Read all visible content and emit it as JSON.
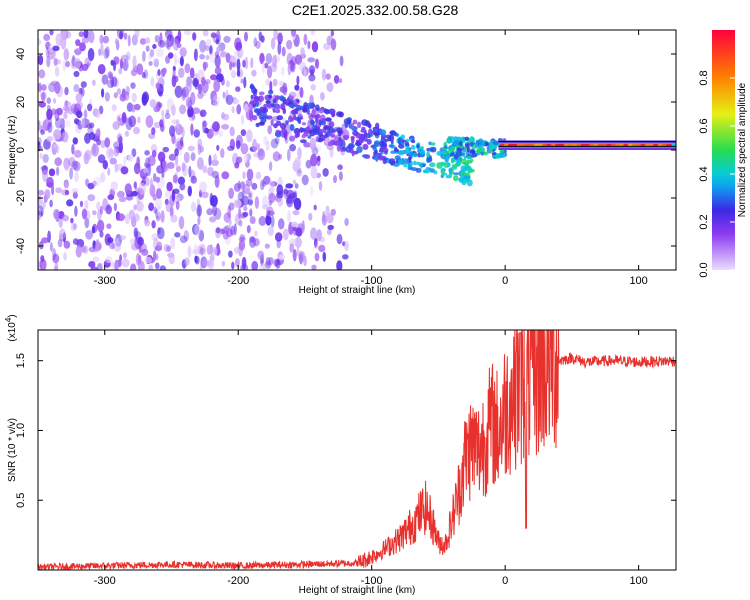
{
  "title": "C2E1.2025.332.00.58.G28",
  "colors": {
    "snr_line": "#e8302c",
    "frame": "#000000",
    "carrier_line": "#000000"
  },
  "chart_data": [
    {
      "type": "heatmap",
      "xlabel": "Height of straight line (km)",
      "ylabel": "Frequency (Hz)",
      "xlim": [
        -350,
        128
      ],
      "ylim": [
        -50,
        50
      ],
      "xticks": [
        -300,
        -200,
        -100,
        0,
        100
      ],
      "yticks": [
        -40,
        -20,
        0,
        20,
        40
      ],
      "colorbar": {
        "label": "Normalized spectral amplitude",
        "range": [
          0,
          1
        ],
        "ticks": [
          0.0,
          0.2,
          0.4,
          0.6,
          0.8
        ],
        "colormap": "rainbow"
      },
      "carrier_frequency_hz": 0
    },
    {
      "type": "line",
      "xlabel": "Height of straight line (km)",
      "ylabel": "SNR (10 * v/v)",
      "ylabel_multiplier": "(x10",
      "ylabel_multiplier_exp": "4",
      "xlim": [
        -350,
        128
      ],
      "ylim": [
        0,
        1.72
      ],
      "xticks": [
        -300,
        -200,
        -100,
        0,
        100
      ],
      "yticks": [
        0.5,
        1.0,
        1.5
      ],
      "series": [
        {
          "x": [
            -350,
            -300,
            -250,
            -200,
            -150,
            -110,
            -95,
            -80,
            -70,
            -60,
            -55,
            -50,
            -45,
            -40,
            -35,
            -30,
            -25,
            -20,
            -15,
            -10,
            -5,
            0,
            5,
            10,
            15,
            20,
            25,
            30,
            40,
            50,
            60,
            80,
            100,
            128
          ],
          "values": [
            0.02,
            0.03,
            0.04,
            0.03,
            0.04,
            0.05,
            0.12,
            0.22,
            0.32,
            0.45,
            0.35,
            0.2,
            0.18,
            0.35,
            0.55,
            0.8,
            0.9,
            0.85,
            0.95,
            1.05,
            1.0,
            1.15,
            1.25,
            1.35,
            1.3,
            1.4,
            1.42,
            1.48,
            1.5,
            1.52,
            1.49,
            1.5,
            1.49,
            1.5
          ]
        }
      ]
    }
  ]
}
